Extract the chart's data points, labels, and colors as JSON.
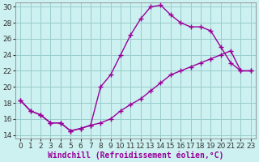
{
  "xlabel": "Windchill (Refroidissement éolien,°C)",
  "bg_color": "#cdf0f0",
  "line_color": "#990099",
  "xlim": [
    -0.5,
    23.5
  ],
  "ylim": [
    13.5,
    30.5
  ],
  "yticks": [
    14,
    16,
    18,
    20,
    22,
    24,
    26,
    28,
    30
  ],
  "xticks": [
    0,
    1,
    2,
    3,
    4,
    5,
    6,
    7,
    8,
    9,
    10,
    11,
    12,
    13,
    14,
    15,
    16,
    17,
    18,
    19,
    20,
    21,
    22,
    23
  ],
  "line1_x": [
    0,
    1,
    2,
    3,
    4,
    5,
    6,
    7,
    8,
    9,
    10,
    11,
    12,
    13,
    14,
    15,
    16,
    17,
    18,
    19,
    20,
    21,
    22,
    23
  ],
  "line1_y": [
    18.3,
    17.0,
    16.5,
    15.5,
    15.5,
    14.5,
    14.8,
    15.2,
    20.0,
    21.5,
    24.0,
    26.5,
    28.5,
    30.0,
    30.2,
    29.0,
    28.0,
    27.5,
    27.5,
    27.0,
    25.0,
    23.0,
    22.0,
    22.0
  ],
  "line2_x": [
    0,
    1,
    2,
    3,
    4,
    5,
    6,
    7,
    8,
    9,
    10,
    11,
    12,
    13,
    14,
    15,
    16,
    17,
    18,
    19,
    20,
    21,
    22,
    23
  ],
  "line2_y": [
    18.3,
    17.0,
    16.5,
    15.5,
    15.5,
    14.5,
    14.8,
    15.2,
    15.5,
    16.0,
    17.0,
    17.8,
    18.5,
    19.5,
    20.5,
    21.5,
    22.0,
    22.5,
    23.0,
    23.5,
    24.0,
    24.5,
    22.0,
    22.0
  ],
  "grid_color": "#99cccc",
  "marker": "+",
  "marker_size": 4,
  "line_width": 1.0,
  "xlabel_fontsize": 7,
  "tick_fontsize": 6.5
}
